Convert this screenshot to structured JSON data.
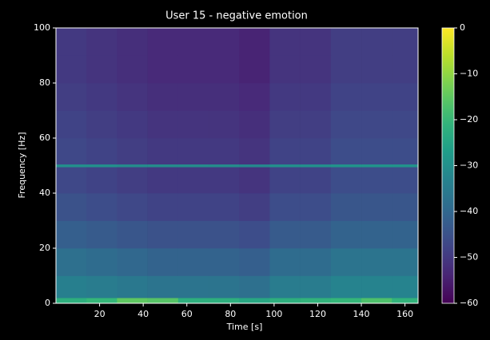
{
  "chart_data": {
    "type": "heatmap",
    "title": "User 15 - negative emotion",
    "xlabel": "Time [s]",
    "ylabel": "Frequency [Hz]",
    "x_edges": [
      0,
      14,
      28,
      42,
      56,
      70,
      84,
      98,
      112,
      126,
      140,
      154,
      166
    ],
    "y_edges": [
      0,
      2,
      10,
      20,
      30,
      40,
      49.5,
      50.5,
      60,
      70,
      80,
      90,
      100
    ],
    "values": [
      [
        -22,
        -20,
        -15,
        -16,
        -22,
        -22,
        -24,
        -22,
        -21,
        -20,
        -17,
        -21
      ],
      [
        -34,
        -35,
        -36,
        -37,
        -37,
        -37,
        -38,
        -35,
        -35,
        -33,
        -33,
        -33
      ],
      [
        -38,
        -39,
        -40,
        -41,
        -41,
        -41,
        -42,
        -39,
        -39,
        -37,
        -37,
        -37
      ],
      [
        -42,
        -43,
        -44,
        -45,
        -45,
        -45,
        -46,
        -43,
        -43,
        -41,
        -41,
        -41
      ],
      [
        -45,
        -46,
        -47,
        -48,
        -48,
        -48,
        -49,
        -46,
        -46,
        -44,
        -44,
        -44
      ],
      [
        -47,
        -48,
        -49,
        -50,
        -50,
        -50,
        -51,
        -48,
        -48,
        -46,
        -46,
        -46
      ],
      [
        -30,
        -30,
        -31,
        -31,
        -31,
        -31,
        -32,
        -30,
        -30,
        -29,
        -29,
        -29
      ],
      [
        -47,
        -48,
        -49,
        -50,
        -50,
        -50,
        -51,
        -48,
        -48,
        -46,
        -46,
        -46
      ],
      [
        -48,
        -49,
        -50,
        -51,
        -51,
        -51,
        -52,
        -49,
        -49,
        -47,
        -47,
        -47
      ],
      [
        -49,
        -50,
        -51,
        -52,
        -52,
        -52,
        -53,
        -50,
        -50,
        -48,
        -48,
        -48
      ],
      [
        -50,
        -51,
        -52,
        -53,
        -53,
        -53,
        -54,
        -51,
        -51,
        -49,
        -49,
        -49
      ],
      [
        -50,
        -51,
        -52,
        -53,
        -53,
        -53,
        -54,
        -51,
        -51,
        -49,
        -49,
        -49
      ]
    ],
    "xlim": [
      0,
      166
    ],
    "ylim": [
      0,
      100
    ],
    "xticks": [
      20,
      40,
      60,
      80,
      100,
      120,
      140,
      160
    ],
    "yticks": [
      0,
      20,
      40,
      60,
      80,
      100
    ],
    "colormap": "viridis",
    "clim": [
      -60,
      0
    ],
    "cticks": [
      {
        "value": 0,
        "label": "0"
      },
      {
        "value": -10,
        "label": "−10"
      },
      {
        "value": -20,
        "label": "−20"
      },
      {
        "value": -30,
        "label": "−30"
      },
      {
        "value": -40,
        "label": "−40"
      },
      {
        "value": -50,
        "label": "−50"
      },
      {
        "value": -60,
        "label": "−60"
      }
    ]
  }
}
